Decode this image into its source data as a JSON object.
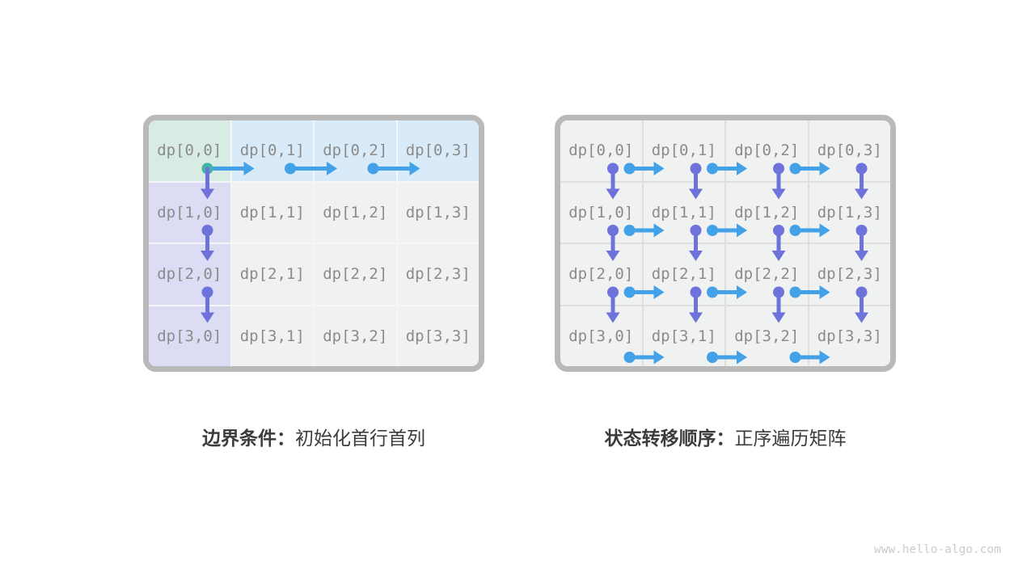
{
  "page": {
    "watermark": "www.hello-algo.com",
    "background": "#ffffff"
  },
  "colors": {
    "arrow_blue": "#43a1e8",
    "arrow_purple": "#6d73da",
    "dot_teal": "#3eb6a1",
    "cell_gray": "#f0f1f1",
    "cell_green": "#d9ece4",
    "cell_blue": "#d9eaf8",
    "cell_purple": "#dcddf4",
    "box_border": "#b9b9b9",
    "label_gray": "#8b8b8b",
    "caption_dark": "#3c3c3c"
  },
  "figures": [
    {
      "name": "boundary-conditions",
      "caption_bold": "边界条件：",
      "caption_text": "初始化首行首列",
      "cells": [
        [
          {
            "label": "dp[0,0]",
            "bg": "green"
          },
          {
            "label": "dp[0,1]",
            "bg": "blue"
          },
          {
            "label": "dp[0,2]",
            "bg": "blue"
          },
          {
            "label": "dp[0,3]",
            "bg": "blue"
          }
        ],
        [
          {
            "label": "dp[1,0]",
            "bg": "purple"
          },
          {
            "label": "dp[1,1]",
            "bg": "gray"
          },
          {
            "label": "dp[1,2]",
            "bg": "gray"
          },
          {
            "label": "dp[1,3]",
            "bg": "gray"
          }
        ],
        [
          {
            "label": "dp[2,0]",
            "bg": "purple"
          },
          {
            "label": "dp[2,1]",
            "bg": "gray"
          },
          {
            "label": "dp[2,2]",
            "bg": "gray"
          },
          {
            "label": "dp[2,3]",
            "bg": "gray"
          }
        ],
        [
          {
            "label": "dp[3,0]",
            "bg": "purple"
          },
          {
            "label": "dp[3,1]",
            "bg": "gray"
          },
          {
            "label": "dp[3,2]",
            "bg": "gray"
          },
          {
            "label": "dp[3,3]",
            "bg": "gray"
          }
        ]
      ],
      "arrows": [
        {
          "dir": "right",
          "r": 0,
          "c": 0,
          "dot": "teal"
        },
        {
          "dir": "right",
          "r": 0,
          "c": 1
        },
        {
          "dir": "right",
          "r": 0,
          "c": 2
        },
        {
          "dir": "down",
          "r": 0,
          "c": 0,
          "dot": "teal"
        },
        {
          "dir": "down",
          "r": 1,
          "c": 0
        },
        {
          "dir": "down",
          "r": 2,
          "c": 0
        }
      ]
    },
    {
      "name": "state-transition-order",
      "caption_bold": "状态转移顺序：",
      "caption_text": "正序遍历矩阵",
      "cells": [
        [
          {
            "label": "dp[0,0]",
            "bg": "gray"
          },
          {
            "label": "dp[0,1]",
            "bg": "gray"
          },
          {
            "label": "dp[0,2]",
            "bg": "gray"
          },
          {
            "label": "dp[0,3]",
            "bg": "gray"
          }
        ],
        [
          {
            "label": "dp[1,0]",
            "bg": "gray"
          },
          {
            "label": "dp[1,1]",
            "bg": "gray"
          },
          {
            "label": "dp[1,2]",
            "bg": "gray"
          },
          {
            "label": "dp[1,3]",
            "bg": "gray"
          }
        ],
        [
          {
            "label": "dp[2,0]",
            "bg": "gray"
          },
          {
            "label": "dp[2,1]",
            "bg": "gray"
          },
          {
            "label": "dp[2,2]",
            "bg": "gray"
          },
          {
            "label": "dp[2,3]",
            "bg": "gray"
          }
        ],
        [
          {
            "label": "dp[3,0]",
            "bg": "gray"
          },
          {
            "label": "dp[3,1]",
            "bg": "gray"
          },
          {
            "label": "dp[3,2]",
            "bg": "gray"
          },
          {
            "label": "dp[3,3]",
            "bg": "gray"
          }
        ]
      ],
      "arrows": [
        {
          "dir": "down",
          "r": 0,
          "c": 0
        },
        {
          "dir": "right",
          "r": 0,
          "c": 0
        },
        {
          "dir": "down",
          "r": 0,
          "c": 1
        },
        {
          "dir": "right",
          "r": 0,
          "c": 1
        },
        {
          "dir": "down",
          "r": 0,
          "c": 2
        },
        {
          "dir": "right",
          "r": 0,
          "c": 2
        },
        {
          "dir": "down",
          "r": 0,
          "c": 3
        },
        {
          "dir": "down",
          "r": 1,
          "c": 0
        },
        {
          "dir": "right",
          "r": 1,
          "c": 0
        },
        {
          "dir": "down",
          "r": 1,
          "c": 1
        },
        {
          "dir": "right",
          "r": 1,
          "c": 1
        },
        {
          "dir": "down",
          "r": 1,
          "c": 2
        },
        {
          "dir": "right",
          "r": 1,
          "c": 2
        },
        {
          "dir": "down",
          "r": 1,
          "c": 3
        },
        {
          "dir": "down",
          "r": 2,
          "c": 0
        },
        {
          "dir": "right",
          "r": 2,
          "c": 0
        },
        {
          "dir": "down",
          "r": 2,
          "c": 1
        },
        {
          "dir": "right",
          "r": 2,
          "c": 1
        },
        {
          "dir": "down",
          "r": 2,
          "c": 2
        },
        {
          "dir": "right",
          "r": 2,
          "c": 2
        },
        {
          "dir": "down",
          "r": 2,
          "c": 3
        },
        {
          "dir": "right",
          "r": 3,
          "c": 0
        },
        {
          "dir": "right",
          "r": 3,
          "c": 1
        },
        {
          "dir": "right",
          "r": 3,
          "c": 2
        }
      ]
    }
  ]
}
